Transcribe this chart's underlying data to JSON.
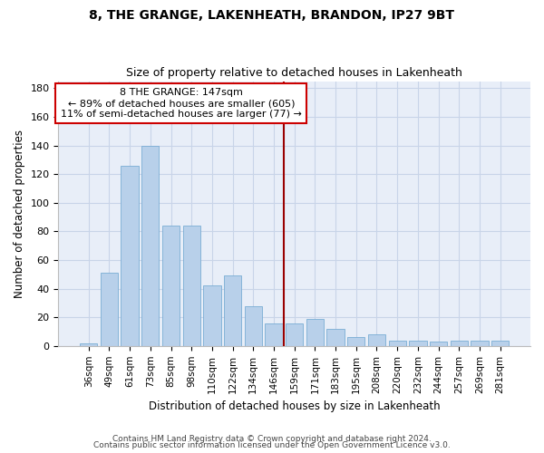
{
  "title": "8, THE GRANGE, LAKENHEATH, BRANDON, IP27 9BT",
  "subtitle": "Size of property relative to detached houses in Lakenheath",
  "xlabel": "Distribution of detached houses by size in Lakenheath",
  "ylabel": "Number of detached properties",
  "footnote1": "Contains HM Land Registry data © Crown copyright and database right 2024.",
  "footnote2": "Contains public sector information licensed under the Open Government Licence v3.0.",
  "categories": [
    "36sqm",
    "49sqm",
    "61sqm",
    "73sqm",
    "85sqm",
    "98sqm",
    "110sqm",
    "122sqm",
    "134sqm",
    "146sqm",
    "159sqm",
    "171sqm",
    "183sqm",
    "195sqm",
    "208sqm",
    "220sqm",
    "232sqm",
    "244sqm",
    "257sqm",
    "269sqm",
    "281sqm"
  ],
  "values": [
    2,
    51,
    126,
    140,
    84,
    84,
    42,
    49,
    28,
    16,
    16,
    19,
    12,
    6,
    8,
    4,
    4,
    3,
    4,
    4,
    4
  ],
  "bar_color": "#b8d0ea",
  "bar_edge_color": "#7aadd4",
  "grid_color": "#c8d4e8",
  "bg_color": "#e8eef8",
  "vline_x": 9.5,
  "vline_color": "#990000",
  "annotation_text": "8 THE GRANGE: 147sqm\n← 89% of detached houses are smaller (605)\n11% of semi-detached houses are larger (77) →",
  "annotation_box_color": "#cc0000",
  "ylim": [
    0,
    185
  ],
  "yticks": [
    0,
    20,
    40,
    60,
    80,
    100,
    120,
    140,
    160,
    180
  ]
}
